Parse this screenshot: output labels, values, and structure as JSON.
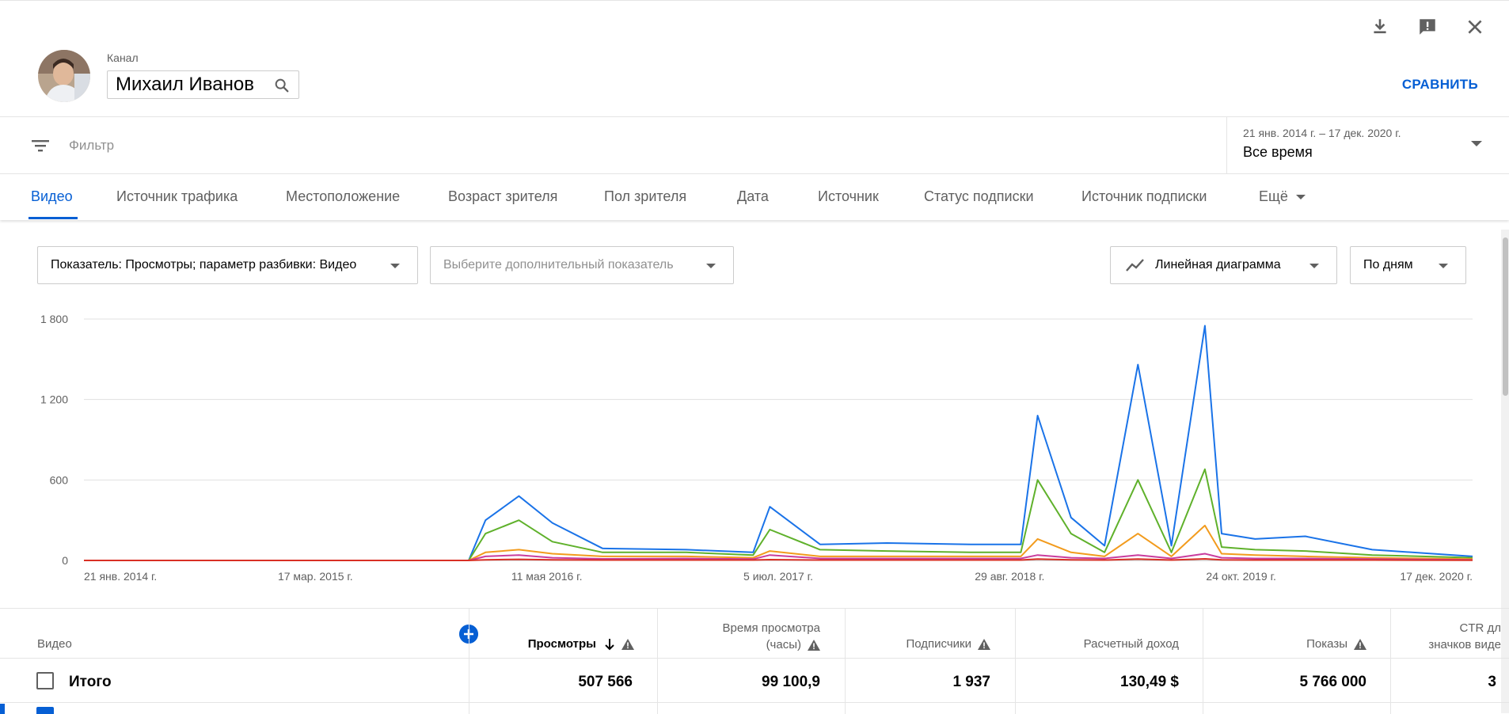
{
  "header": {
    "channel_label": "Канал",
    "channel_name": "Михаил Иванов",
    "compare_label": "СРАВНИТЬ"
  },
  "filter": {
    "placeholder": "Фильтр",
    "date_range": "21 янв. 2014 г. – 17 дек. 2020 г.",
    "date_value": "Все время"
  },
  "tabs": [
    {
      "label": "Видео"
    },
    {
      "label": "Источник трафика"
    },
    {
      "label": "Местоположение"
    },
    {
      "label": "Возраст зрителя"
    },
    {
      "label": "Пол зрителя"
    },
    {
      "label": "Дата"
    },
    {
      "label": "Источник"
    },
    {
      "label": "Статус подписки"
    },
    {
      "label": "Источник подписки"
    },
    {
      "label": "Ещё"
    }
  ],
  "controls": {
    "metric": "Показатель: Просмотры; параметр разбивки: Видео",
    "secondary": "Выберите дополнительный показатель",
    "chart_type": "Линейная диаграмма",
    "granularity": "По дням"
  },
  "colors": {
    "accent": "#065fd4",
    "series_blue": "#1a73e8",
    "series_green": "#5fb12b",
    "series_orange": "#f29b1d",
    "series_magenta": "#c93d9e",
    "series_red": "#d93025"
  },
  "chart_data": {
    "type": "line",
    "title": "",
    "xlabel": "",
    "ylabel": "",
    "ylim": [
      0,
      1800
    ],
    "yticks": [
      "0",
      "600",
      "1 200",
      "1 800"
    ],
    "xticks": [
      "21 янв. 2014 г.",
      "17 мар. 2015 г.",
      "11 мая 2016 г.",
      "5 июл. 2017 г.",
      "29 авг. 2018 г.",
      "24 окт. 2019 г.",
      "17 дек. 2020 г."
    ],
    "x": [
      "2014-01",
      "2015-03",
      "2015-12",
      "2016-01",
      "2016-03",
      "2016-05",
      "2016-08",
      "2017-01",
      "2017-05",
      "2017-06",
      "2017-09",
      "2018-01",
      "2018-06",
      "2018-09",
      "2018-10",
      "2018-12",
      "2019-02",
      "2019-04",
      "2019-06",
      "2019-08",
      "2019-09",
      "2019-11",
      "2020-02",
      "2020-06",
      "2020-12"
    ],
    "series": [
      {
        "name": "",
        "values": [
          0,
          0,
          0,
          300,
          480,
          280,
          90,
          80,
          60,
          400,
          120,
          130,
          120,
          120,
          1080,
          320,
          110,
          1460,
          110,
          1750,
          200,
          160,
          180,
          80,
          30
        ]
      },
      {
        "name": "",
        "values": [
          0,
          0,
          0,
          200,
          300,
          140,
          60,
          60,
          40,
          230,
          80,
          70,
          60,
          60,
          600,
          200,
          60,
          600,
          60,
          680,
          100,
          80,
          70,
          40,
          20
        ]
      },
      {
        "name": "",
        "values": [
          0,
          0,
          0,
          60,
          80,
          50,
          30,
          30,
          20,
          70,
          30,
          30,
          30,
          30,
          160,
          60,
          30,
          200,
          30,
          260,
          50,
          40,
          30,
          20,
          10
        ]
      },
      {
        "name": "",
        "values": [
          0,
          0,
          0,
          30,
          40,
          20,
          12,
          15,
          10,
          40,
          15,
          15,
          15,
          15,
          40,
          20,
          15,
          40,
          15,
          50,
          20,
          15,
          15,
          10,
          5
        ]
      },
      {
        "name": "",
        "values": [
          0,
          0,
          0,
          5,
          8,
          5,
          3,
          3,
          3,
          6,
          3,
          3,
          3,
          3,
          10,
          5,
          3,
          10,
          3,
          12,
          5,
          3,
          3,
          3,
          2
        ]
      }
    ]
  },
  "table": {
    "headers": {
      "video": "Видео",
      "views": "Просмотры",
      "watch_time_1": "Время просмотра",
      "watch_time_2": "(часы)",
      "subscribers": "Подписчики",
      "revenue": "Расчетный доход",
      "impressions": "Показы",
      "ctr_1": "CTR дл",
      "ctr_2": "значков виде"
    },
    "total": {
      "label": "Итого",
      "views": "507 566",
      "watch_time": "99 100,9",
      "subscribers": "1 937",
      "revenue": "130,49 $",
      "impressions": "5 766 000",
      "ctr": "3"
    }
  }
}
